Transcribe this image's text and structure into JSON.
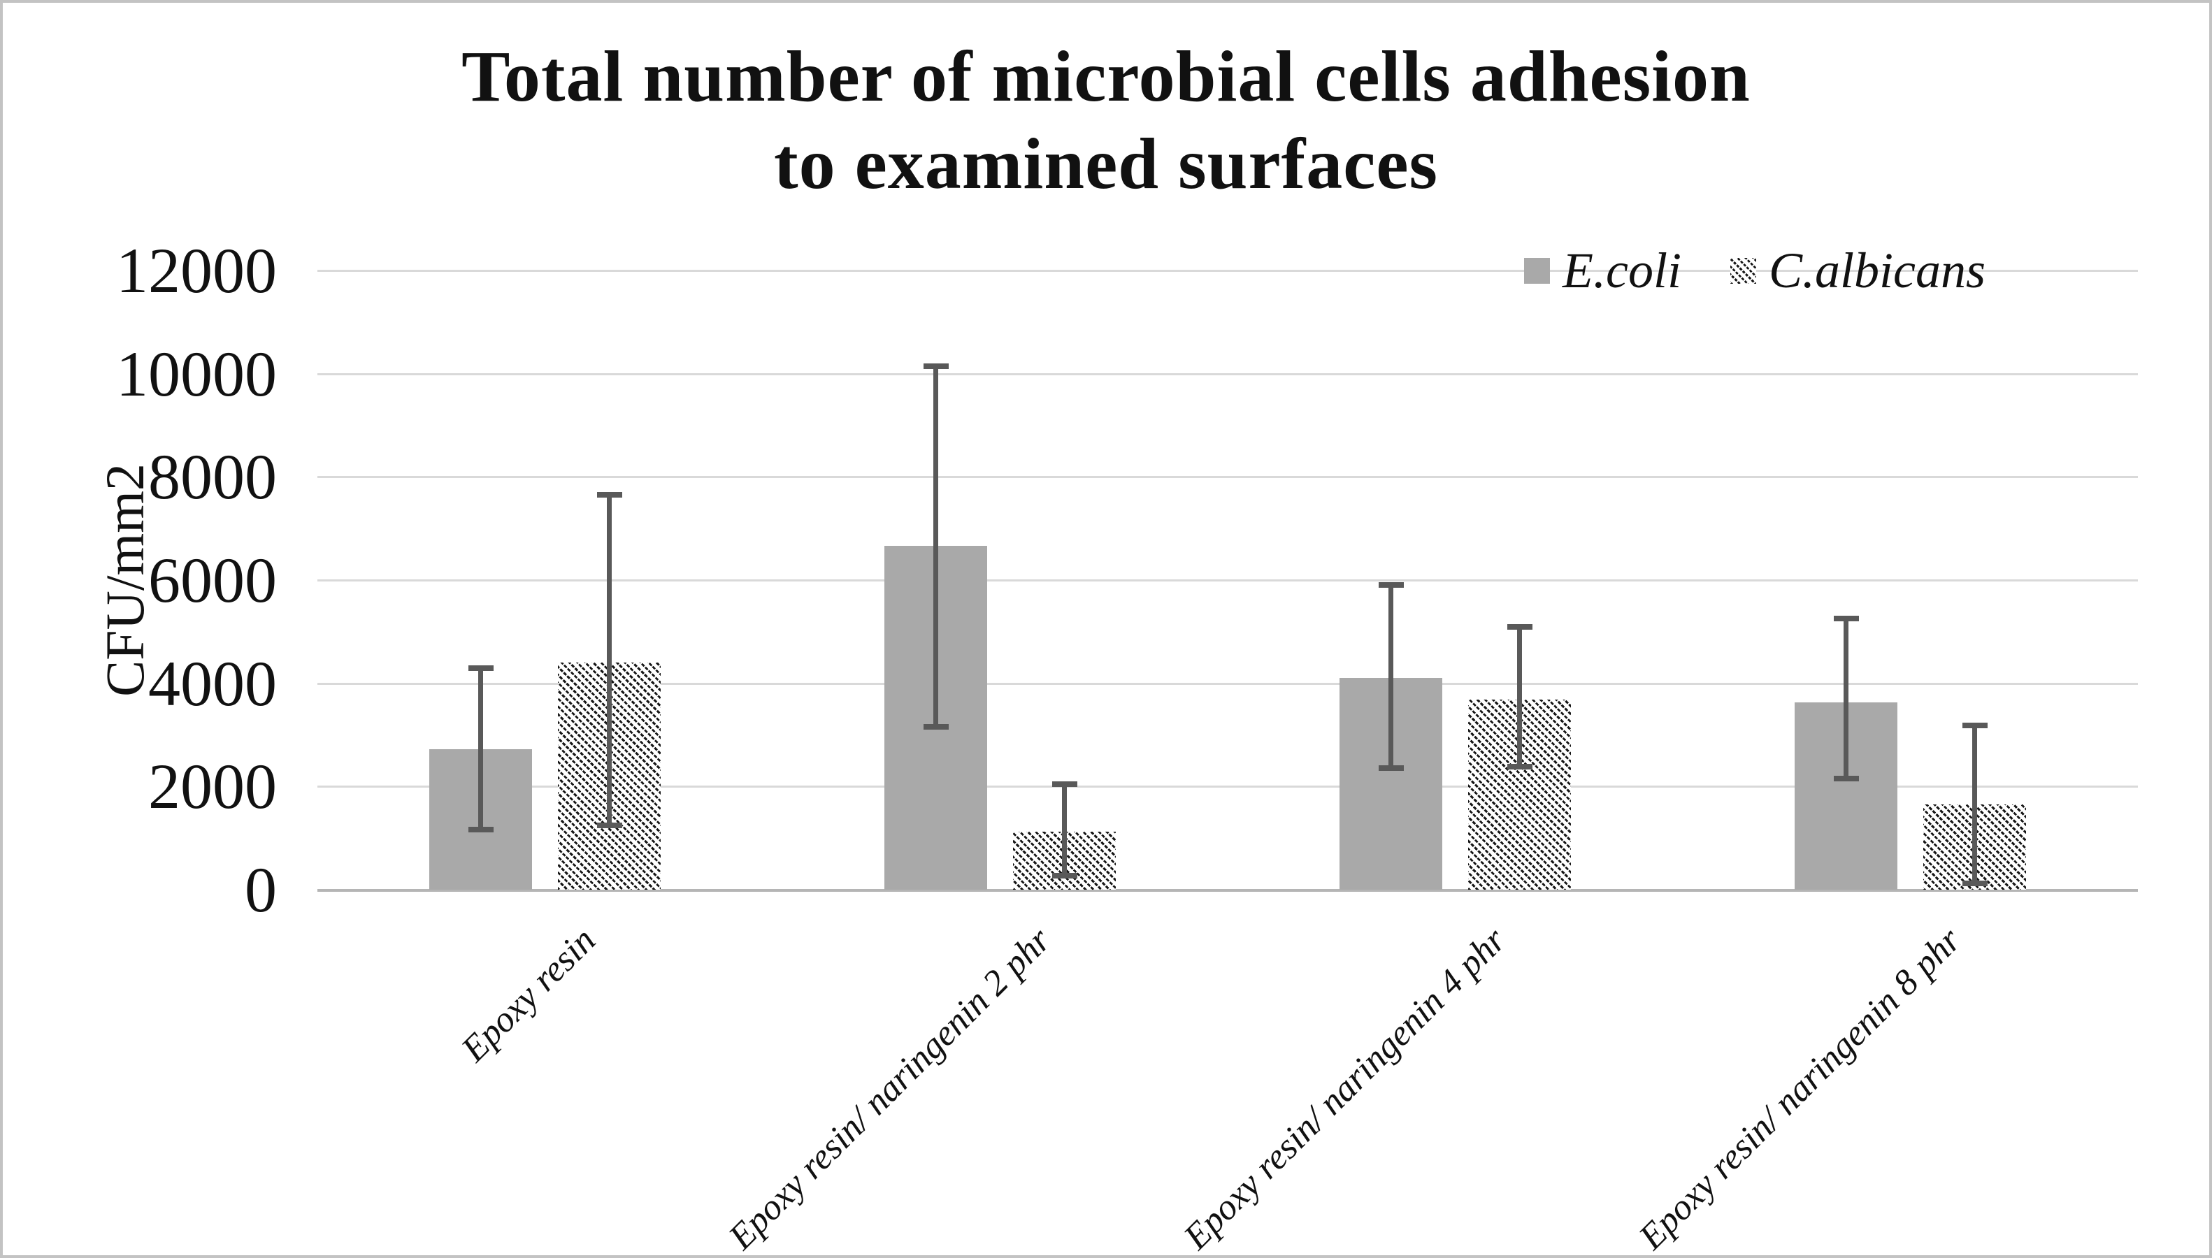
{
  "chart_title": {
    "line1": "Total number of microbial cells adhesion",
    "line2": "to examined surfaces"
  },
  "y_axis": {
    "title": "CFU/mm2",
    "min": 0,
    "max": 12000,
    "step": 2000,
    "tick_labels": [
      "0",
      "2000",
      "4000",
      "6000",
      "8000",
      "10000",
      "12000"
    ]
  },
  "x_axis": {
    "categories": [
      "Epoxy resin",
      "Epoxy resin/ naringenin 2 phr",
      "Epoxy resin/ naringenin 4 phr",
      "Epoxy resin/ naringenin 8 phr"
    ]
  },
  "legend": {
    "items": [
      {
        "label": "E.coli",
        "swatch": "solid-gray-square"
      },
      {
        "label": "C.albicans",
        "swatch": "diagonal-hatch-square"
      }
    ]
  },
  "colors": {
    "bar_fill": "#a9a9a9",
    "error_bar": "#595959",
    "gridline": "#d9d9d9",
    "axis_line": "#b5b5b5",
    "hatch_ink": "#161616",
    "text": "#111111",
    "frame_border": "#c3c3c3",
    "background": "#ffffff"
  },
  "chart_data": {
    "type": "bar",
    "title": "Total number of microbial cells adhesion to examined surfaces",
    "categories": [
      "Epoxy resin",
      "Epoxy resin/ naringenin 2 phr",
      "Epoxy resin/ naringenin 4 phr",
      "Epoxy resin/ naringenin 8 phr"
    ],
    "series": [
      {
        "name": "E.coli",
        "fill": "solid-gray",
        "values": [
          2720,
          6660,
          4100,
          3630
        ],
        "error_low": [
          1160,
          3160,
          2350,
          2150
        ],
        "error_high": [
          4300,
          10150,
          5900,
          5250
        ]
      },
      {
        "name": "C.albicans",
        "fill": "diagonal-hatch",
        "values": [
          4400,
          1120,
          3690,
          1650
        ],
        "error_low": [
          1250,
          270,
          2380,
          120
        ],
        "error_high": [
          7650,
          2050,
          5090,
          3180
        ]
      }
    ],
    "xlabel": "",
    "ylabel": "CFU/mm2",
    "ylim": [
      0,
      12000
    ],
    "ytick_step": 2000,
    "grid": true,
    "error_bars": true,
    "legend_position": "top-right"
  }
}
